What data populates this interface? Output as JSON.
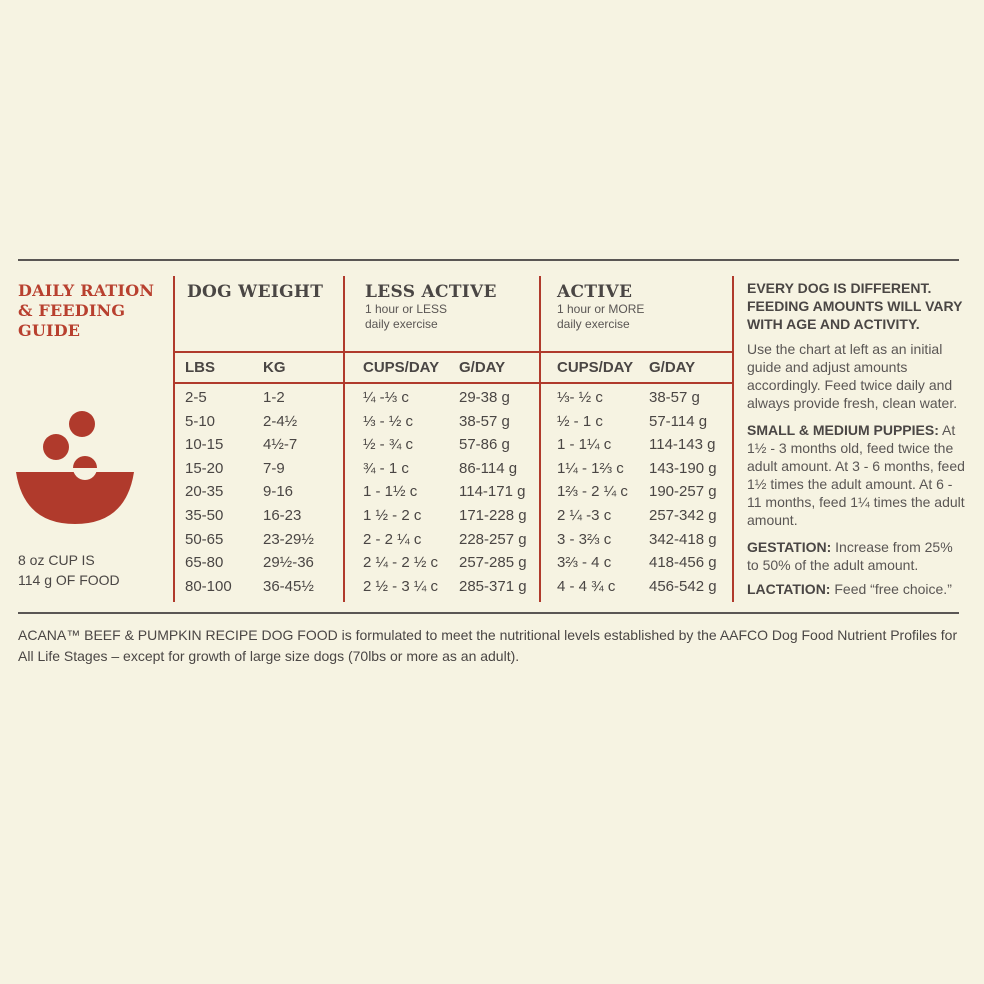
{
  "title": "DAILY RATION & FEEDING GUIDE",
  "cup_note": [
    "8 oz CUP IS",
    "114 g OF FOOD"
  ],
  "colors": {
    "accent": "#b03a2c",
    "background": "#f6f3e2",
    "text": "#4a4644"
  },
  "icon": "food-bowl-icon",
  "columns": {
    "dog_weight": {
      "title": "DOG WEIGHT",
      "sub1": "LBS",
      "sub2": "KG"
    },
    "less_active": {
      "title": "LESS ACTIVE",
      "desc1": "1 hour or LESS",
      "desc2": "daily exercise",
      "sub1": "CUPS/DAY",
      "sub2": "G/DAY"
    },
    "active": {
      "title": "ACTIVE",
      "desc1": "1 hour or MORE",
      "desc2": "daily exercise",
      "sub1": "CUPS/DAY",
      "sub2": "G/DAY"
    }
  },
  "rows": [
    {
      "lbs": "2-5",
      "kg": "1-2",
      "la_cups": "¼ -⅓ c",
      "la_g": "29-38 g",
      "a_cups": "⅓- ½ c",
      "a_g": "38-57 g"
    },
    {
      "lbs": "5-10",
      "kg": "2-4½",
      "la_cups": "⅓ - ½ c",
      "la_g": "38-57 g",
      "a_cups": "½ - 1 c",
      "a_g": "57-114 g"
    },
    {
      "lbs": "10-15",
      "kg": "4½-7",
      "la_cups": "½ - ¾ c",
      "la_g": "57-86 g",
      "a_cups": "1 - 1¼ c",
      "a_g": "114-143 g"
    },
    {
      "lbs": "15-20",
      "kg": "7-9",
      "la_cups": "¾ - 1 c",
      "la_g": "86-114 g",
      "a_cups": "1¼ - 1⅔ c",
      "a_g": "143-190 g"
    },
    {
      "lbs": "20-35",
      "kg": "9-16",
      "la_cups": "1 - 1½ c",
      "la_g": "114-171 g",
      "a_cups": "1⅔ - 2 ¼ c",
      "a_g": "190-257 g"
    },
    {
      "lbs": "35-50",
      "kg": "16-23",
      "la_cups": "1 ½ - 2 c",
      "la_g": "171-228 g",
      "a_cups": "2 ¼ -3 c",
      "a_g": "257-342 g"
    },
    {
      "lbs": "50-65",
      "kg": "23-29½",
      "la_cups": "2 - 2 ¼ c",
      "la_g": "228-257 g",
      "a_cups": "3 - 3⅔ c",
      "a_g": "342-418 g"
    },
    {
      "lbs": "65-80",
      "kg": "29½-36",
      "la_cups": "2 ¼ - 2 ½ c",
      "la_g": "257-285 g",
      "a_cups": "3⅔ - 4 c",
      "a_g": "418-456 g"
    },
    {
      "lbs": "80-100",
      "kg": "36-45½",
      "la_cups": "2 ½ - 3 ¼ c",
      "la_g": "285-371 g",
      "a_cups": "4 - 4 ¾ c",
      "a_g": "456-542 g"
    }
  ],
  "right": {
    "headline": "EVERY DOG IS DIFFERENT. FEEDING AMOUNTS WILL VARY WITH AGE AND ACTIVITY.",
    "intro": "Use the chart at left as an initial guide and adjust amounts accordingly. Feed twice daily and always provide fresh, clean water.",
    "puppies_label": "SMALL & MEDIUM PUPPIES:",
    "puppies_text": "At 1½ - 3 months old, feed twice the adult amount. At 3 - 6 months, feed 1½ times the adult amount. At 6 - 11 months, feed 1¼ times the adult amount.",
    "gestation_label": "GESTATION:",
    "gestation_text": " Increase from 25% to 50% of the adult amount.",
    "lactation_label": "LACTATION:",
    "lactation_text": " Feed “free choice.”"
  },
  "footer": "ACANA™ BEEF & PUMPKIN RECIPE DOG FOOD is formulated to meet the nutritional levels established by the AAFCO Dog Food Nutrient Profiles for All Life Stages – except for growth of large size dogs (70lbs or more as an adult)."
}
